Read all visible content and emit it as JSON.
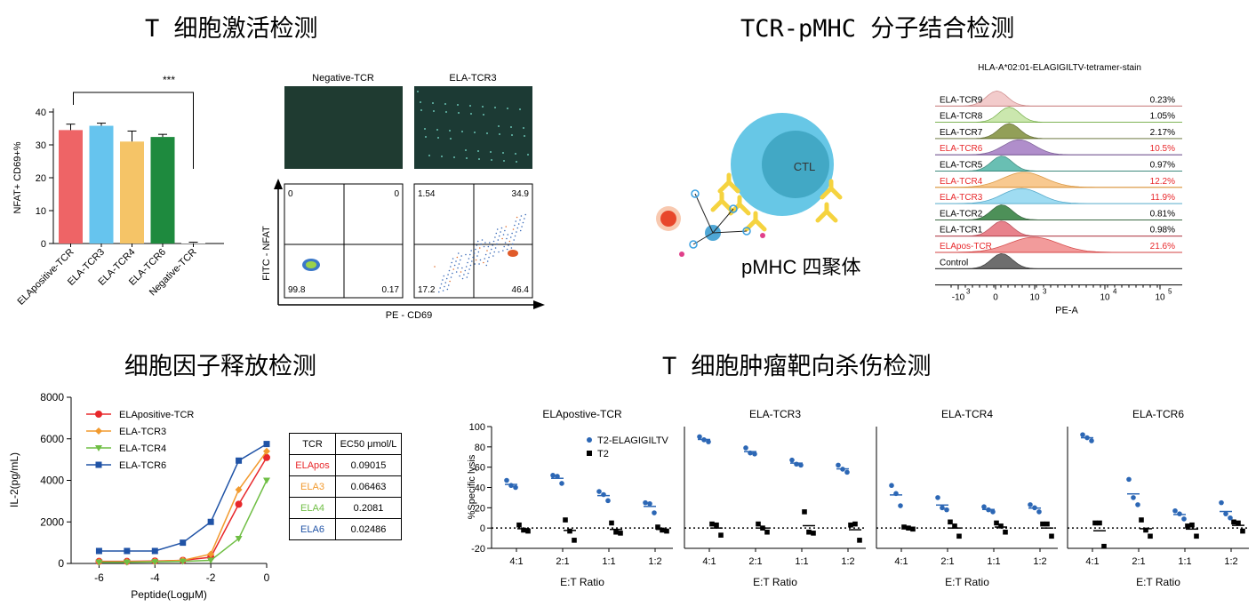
{
  "titles": {
    "activation": "T 细胞激活检测",
    "binding": "TCR-pMHC 分子结合检测",
    "cytokine": "细胞因子释放检测",
    "killing": "T 细胞肿瘤靶向杀伤检测"
  },
  "colors": {
    "red": "#e8282b",
    "orange": "#f29a2e",
    "green": "#6fbe44",
    "blue": "#2053a6",
    "bar_red": "#ee6466",
    "bar_blue": "#66c4ee",
    "bar_yellow": "#f5c467",
    "bar_green": "#1e8a3e",
    "dot_blue": "#2c67b5"
  },
  "flow": {
    "negative_label": "Negative-TCR",
    "ela3_label": "ELA-TCR3",
    "y_label": "FITC - NFAT",
    "x_label": "PE - CD69",
    "negative_quadrants": [
      "0",
      "0",
      "99.8",
      "0.17"
    ],
    "ela3_quadrants": [
      "1.54",
      "34.9",
      "17.2",
      "46.4"
    ]
  },
  "diagram": {
    "ctl_label": "CTL",
    "pmhc_label": "pMHC 四聚体"
  },
  "chart_data": [
    {
      "type": "bar",
      "ylabel": "NFAT+ CD69+%",
      "ylim": [
        0,
        40
      ],
      "yticks": [
        "0",
        "10",
        "20",
        "30",
        "40"
      ],
      "categories": [
        "ELApositive-TCR",
        "ELA-TCR3",
        "ELA-TCR4",
        "ELA-TCR6",
        "Negative-TCR"
      ],
      "values": [
        34.5,
        35.8,
        31,
        32.4,
        0.2
      ],
      "errors": [
        1.8,
        0.8,
        3.2,
        0.8,
        0.2
      ],
      "annotation": "***"
    },
    {
      "type": "area",
      "title": "HLA-A*02:01-ELAGIGILTV-tetramer-stain",
      "xlabel": "PE-A",
      "xticks": [
        "-10",
        "0",
        "10",
        "10",
        "10"
      ],
      "xtick_exponents": [
        "3",
        "",
        "3",
        "4",
        "5"
      ],
      "series": [
        {
          "name": "ELA-TCR9",
          "percent": "0.23%",
          "color": "#f0c3c3",
          "line": "#c97e7e",
          "label_color": "#000",
          "peak": 0.25,
          "width": 0.06
        },
        {
          "name": "ELA-TCR8",
          "percent": "1.05%",
          "color": "#c2e3a0",
          "line": "#6aa83a",
          "label_color": "#000",
          "peak": 0.3,
          "width": 0.06
        },
        {
          "name": "ELA-TCR7",
          "percent": "2.17%",
          "color": "#7f8f3c",
          "line": "#556122",
          "label_color": "#000",
          "peak": 0.3,
          "width": 0.06
        },
        {
          "name": "ELA-TCR6",
          "percent": "10.5%",
          "color": "#a37bc2",
          "line": "#6b4b8a",
          "label_color": "#e8282b",
          "peak": 0.34,
          "width": 0.09
        },
        {
          "name": "ELA-TCR5",
          "percent": "0.97%",
          "color": "#4fb5a6",
          "line": "#2c7f72",
          "label_color": "#000",
          "peak": 0.27,
          "width": 0.06
        },
        {
          "name": "ELA-TCR4",
          "percent": "12.2%",
          "color": "#f7c07d",
          "line": "#d58a2a",
          "label_color": "#e8282b",
          "peak": 0.36,
          "width": 0.12
        },
        {
          "name": "ELA-TCR3",
          "percent": "11.9%",
          "color": "#8fd6f0",
          "line": "#3a9cc2",
          "label_color": "#e8282b",
          "peak": 0.35,
          "width": 0.11
        },
        {
          "name": "ELA-TCR2",
          "percent": "0.81%",
          "color": "#2f7d3c",
          "line": "#1b4f24",
          "label_color": "#000",
          "peak": 0.27,
          "width": 0.06
        },
        {
          "name": "ELA-TCR1",
          "percent": "0.98%",
          "color": "#e46d78",
          "line": "#b03a46",
          "label_color": "#000",
          "peak": 0.27,
          "width": 0.06
        },
        {
          "name": "ELApos-TCR",
          "percent": "21.6%",
          "color": "#f08a8a",
          "line": "#d03030",
          "label_color": "#e8282b",
          "peak": 0.4,
          "width": 0.14
        },
        {
          "name": "Control",
          "percent": "",
          "color": "#555555",
          "line": "#222222",
          "label_color": "#000",
          "peak": 0.27,
          "width": 0.06
        }
      ]
    },
    {
      "type": "line",
      "ylabel": "IL-2(pg/mL)",
      "xlabel": "Peptide(LogμM)",
      "xlim": [
        -7,
        0
      ],
      "ylim": [
        0,
        8000
      ],
      "xticks": [
        "-6",
        "-4",
        "-2",
        "0"
      ],
      "yticks": [
        "0",
        "2000",
        "4000",
        "6000",
        "8000"
      ],
      "x": [
        -6,
        -5,
        -4,
        -3,
        -2,
        -1,
        0
      ],
      "series": [
        {
          "name": "ELApositive-TCR",
          "color": "#e8282b",
          "marker": "circle",
          "values": [
            100,
            100,
            120,
            150,
            300,
            2850,
            5100
          ]
        },
        {
          "name": "ELA-TCR3",
          "color": "#f29a2e",
          "marker": "diamond",
          "values": [
            80,
            80,
            100,
            150,
            450,
            3550,
            5400
          ]
        },
        {
          "name": "ELA-TCR4",
          "color": "#6fbe44",
          "marker": "triangle",
          "values": [
            60,
            60,
            80,
            100,
            150,
            1200,
            4000
          ]
        },
        {
          "name": "ELA-TCR6",
          "color": "#2053a6",
          "marker": "square",
          "values": [
            600,
            600,
            600,
            1000,
            2000,
            4950,
            5750
          ]
        }
      ],
      "table": {
        "headers": [
          "TCR",
          "EC50 μmol/L"
        ],
        "rows": [
          {
            "name": "ELApos",
            "value": "0.09015",
            "color": "#e8282b"
          },
          {
            "name": "ELA3",
            "value": "0.06463",
            "color": "#f29a2e"
          },
          {
            "name": "ELA4",
            "value": "0.2081",
            "color": "#6fbe44"
          },
          {
            "name": "ELA6",
            "value": "0.02486",
            "color": "#2053a6"
          }
        ]
      }
    },
    {
      "type": "scatter",
      "ylabel": "%Specific lysis",
      "xlabel": "E:T Ratio",
      "ylim": [
        -20,
        100
      ],
      "yticks": [
        "-20",
        "0",
        "20",
        "40",
        "60",
        "80",
        "100"
      ],
      "categories": [
        "4:1",
        "2:1",
        "1:1",
        "1:2"
      ],
      "legend": [
        "T2-ELAGIGILTV",
        "T2"
      ],
      "panels": [
        {
          "title": "ELApostive-TCR",
          "blue": [
            [
              47,
              40,
              42
            ],
            [
              52,
              44,
              51
            ],
            [
              36,
              27,
              33
            ],
            [
              25,
              15,
              24
            ]
          ],
          "black": [
            [
              3,
              -3,
              -2
            ],
            [
              8,
              -12,
              -3
            ],
            [
              5,
              -5,
              -4
            ],
            [
              1,
              -3,
              -2
            ]
          ]
        },
        {
          "title": "ELA-TCR3",
          "blue": [
            [
              90,
              85,
              87
            ],
            [
              79,
              73,
              74
            ],
            [
              67,
              62,
              63
            ],
            [
              62,
              55,
              58
            ]
          ],
          "black": [
            [
              4,
              -7,
              3
            ],
            [
              4,
              -4,
              0
            ],
            [
              16,
              -5,
              -4
            ],
            [
              3,
              -12,
              4
            ]
          ]
        },
        {
          "title": "ELA-TCR4",
          "blue": [
            [
              42,
              22,
              34
            ],
            [
              30,
              18,
              20
            ],
            [
              21,
              16,
              18
            ],
            [
              23,
              16,
              20
            ]
          ],
          "black": [
            [
              1,
              -1,
              0
            ],
            [
              6,
              -8,
              2
            ],
            [
              5,
              -4,
              2
            ],
            [
              4,
              -8,
              4
            ]
          ]
        },
        {
          "title": "ELA-TCR6",
          "blue": [
            [
              92,
              86,
              89
            ],
            [
              48,
              23,
              30
            ],
            [
              17,
              9,
              14
            ],
            [
              25,
              10,
              14
            ]
          ],
          "black": [
            [
              5,
              -18,
              5
            ],
            [
              8,
              -8,
              -2
            ],
            [
              2,
              -8,
              3
            ],
            [
              6,
              -3,
              5
            ]
          ]
        }
      ]
    }
  ]
}
